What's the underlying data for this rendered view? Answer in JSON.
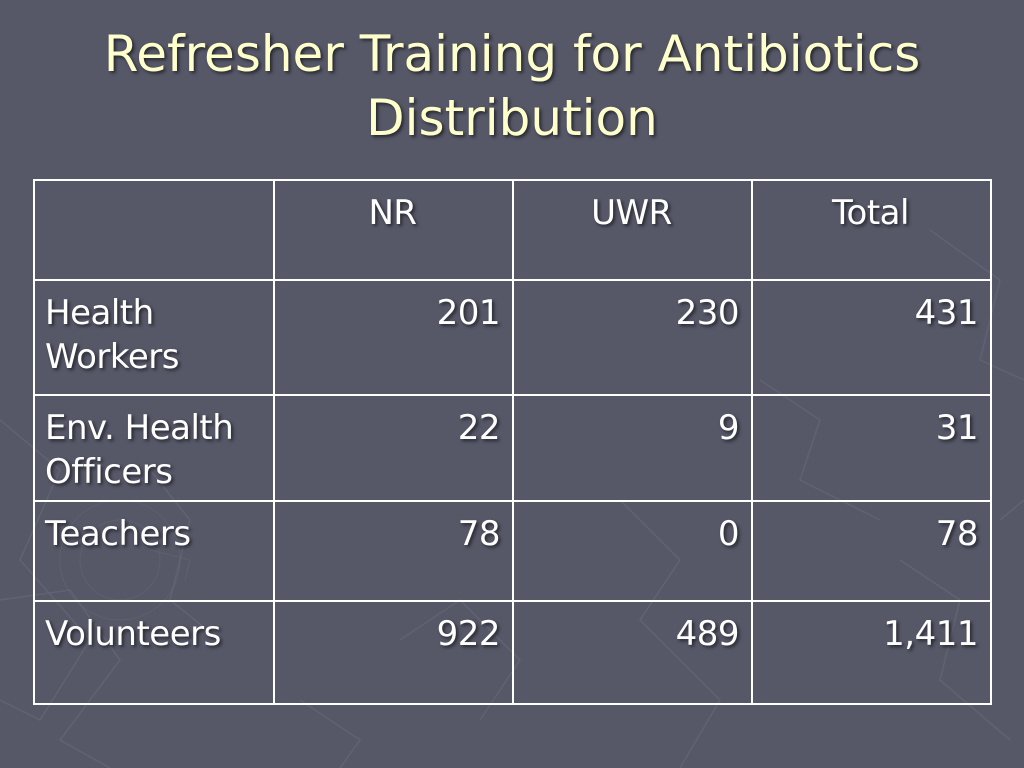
{
  "slide": {
    "title_line1": "Refresher Training for Antibiotics",
    "title_line2": "Distribution"
  },
  "table": {
    "headers": [
      "",
      "NR",
      "UWR",
      "Total"
    ],
    "rows": [
      {
        "label_line1": "Health",
        "label_line2": "Workers",
        "nr": "201",
        "uwr": "230",
        "total": "431"
      },
      {
        "label_line1": "Env. Health",
        "label_line2": "Officers",
        "nr": "22",
        "uwr": "9",
        "total": "31"
      },
      {
        "label_line1": "Teachers",
        "label_line2": "",
        "nr": "78",
        "uwr": "0",
        "total": "78"
      },
      {
        "label_line1": "Volunteers",
        "label_line2": "",
        "nr": "922",
        "uwr": "489",
        "total": "1,411"
      }
    ]
  },
  "colors": {
    "background": "#565868",
    "title_text": "#ffffcc",
    "table_text": "#ffffff",
    "grid_lines": "#ffffff"
  }
}
